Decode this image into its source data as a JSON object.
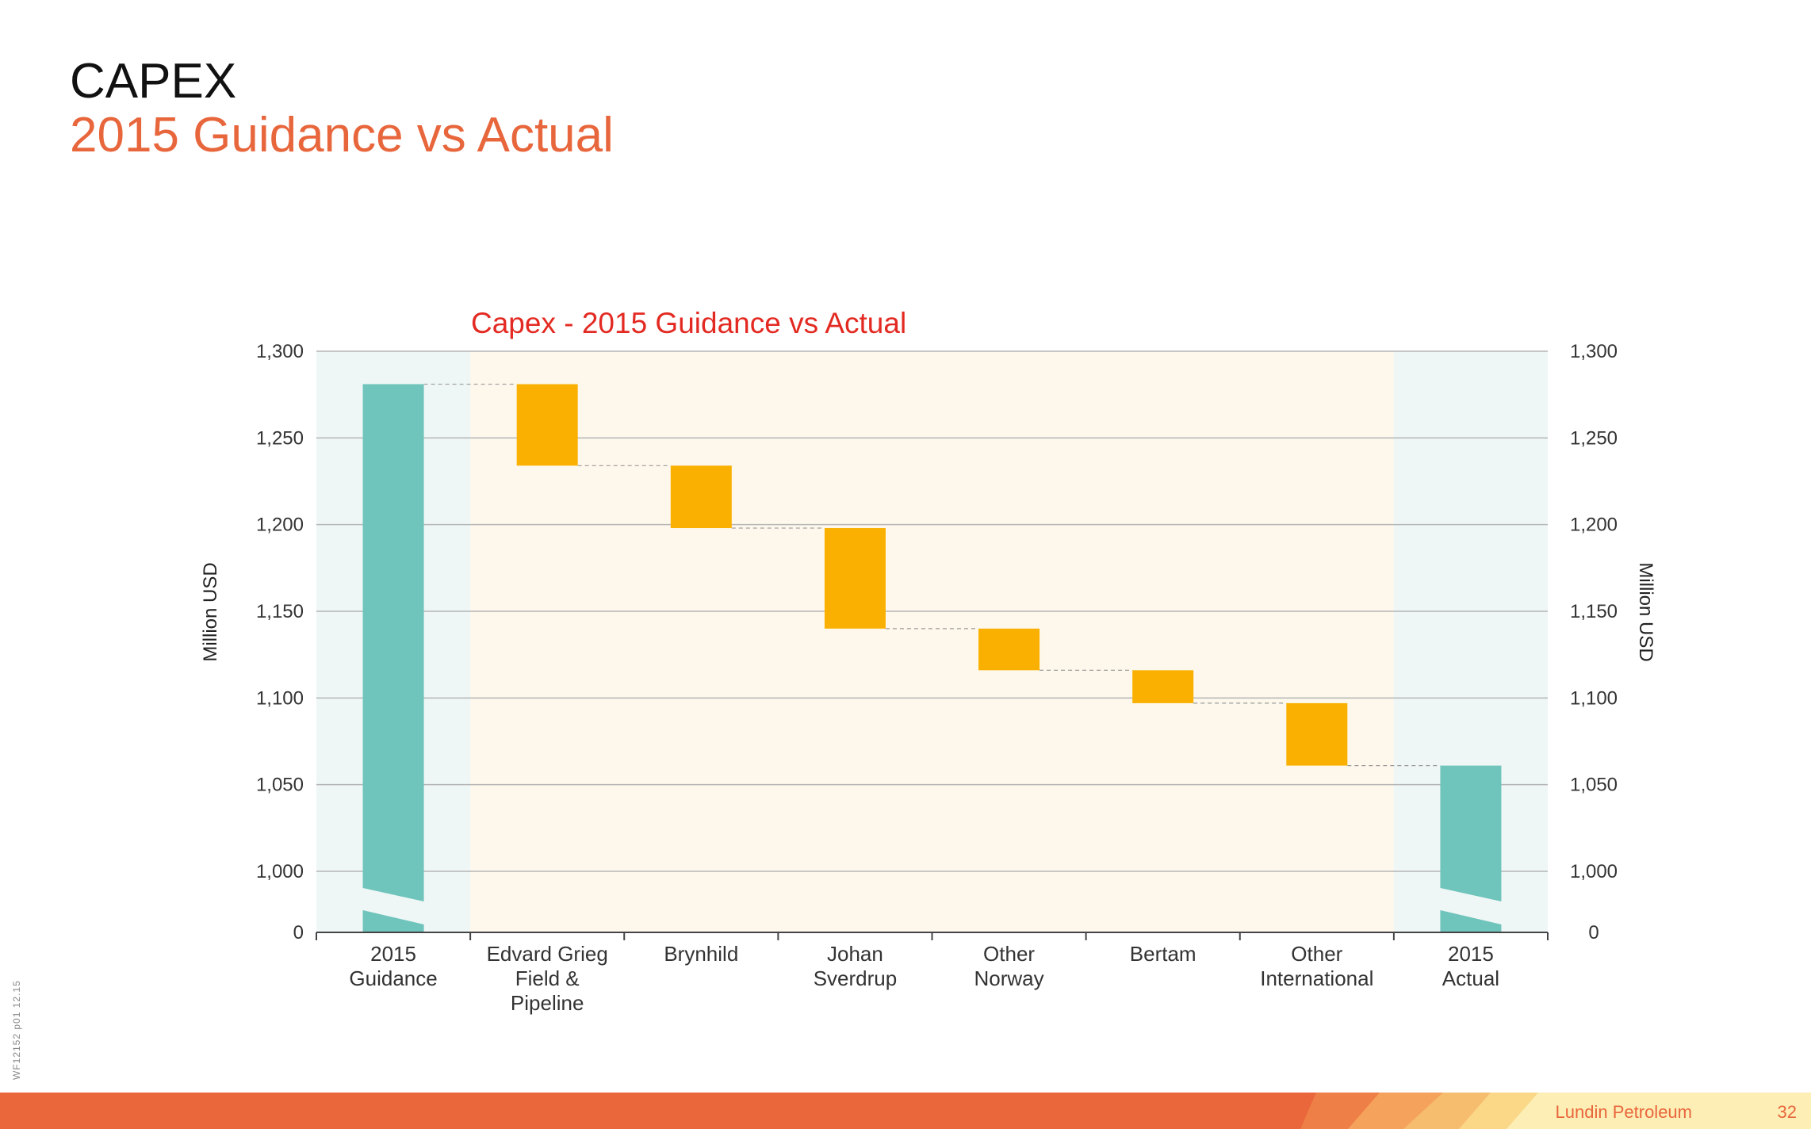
{
  "slide": {
    "title": "CAPEX",
    "subtitle": "2015 Guidance vs Actual",
    "side_code": "WF12152 p01 12.15",
    "footer_brand": "Lundin Petroleum",
    "page_number": "32"
  },
  "colors": {
    "total_bar": "#6fc4bb",
    "step_bar": "#f9b000",
    "total_band": "#eff7f6",
    "step_band": "#fef8ec",
    "title_red": "#e32a22",
    "accent_orange": "#e8663c"
  },
  "chart_data": {
    "type": "bar",
    "subtype": "waterfall",
    "title": "Capex - 2015 Guidance vs Actual",
    "ylabel": "Million USD",
    "ylabel_right": "Million USD",
    "ylim": [
      0,
      1300
    ],
    "axis_break": [
      0,
      1000
    ],
    "yticks": [
      0,
      1000,
      1050,
      1100,
      1150,
      1200,
      1250,
      1300
    ],
    "ytick_labels": [
      "0",
      "1,000",
      "1,050",
      "1,100",
      "1,150",
      "1,200",
      "1,250",
      "1,300"
    ],
    "grid": true,
    "categories": [
      [
        "2015",
        "Guidance"
      ],
      [
        "Edvard Grieg",
        "Field &",
        "Pipeline"
      ],
      [
        "Brynhild"
      ],
      [
        "Johan",
        "Sverdrup"
      ],
      [
        "Other",
        "Norway"
      ],
      [
        "Bertam"
      ],
      [
        "Other",
        "International"
      ],
      [
        "2015",
        "Actual"
      ]
    ],
    "bars": [
      {
        "kind": "total",
        "start": 0,
        "end": 1281
      },
      {
        "kind": "decrease",
        "start": 1281,
        "end": 1234
      },
      {
        "kind": "decrease",
        "start": 1234,
        "end": 1198
      },
      {
        "kind": "decrease",
        "start": 1198,
        "end": 1140
      },
      {
        "kind": "decrease",
        "start": 1140,
        "end": 1116
      },
      {
        "kind": "decrease",
        "start": 1116,
        "end": 1097
      },
      {
        "kind": "decrease",
        "start": 1097,
        "end": 1061
      },
      {
        "kind": "total",
        "start": 0,
        "end": 1061
      }
    ]
  }
}
